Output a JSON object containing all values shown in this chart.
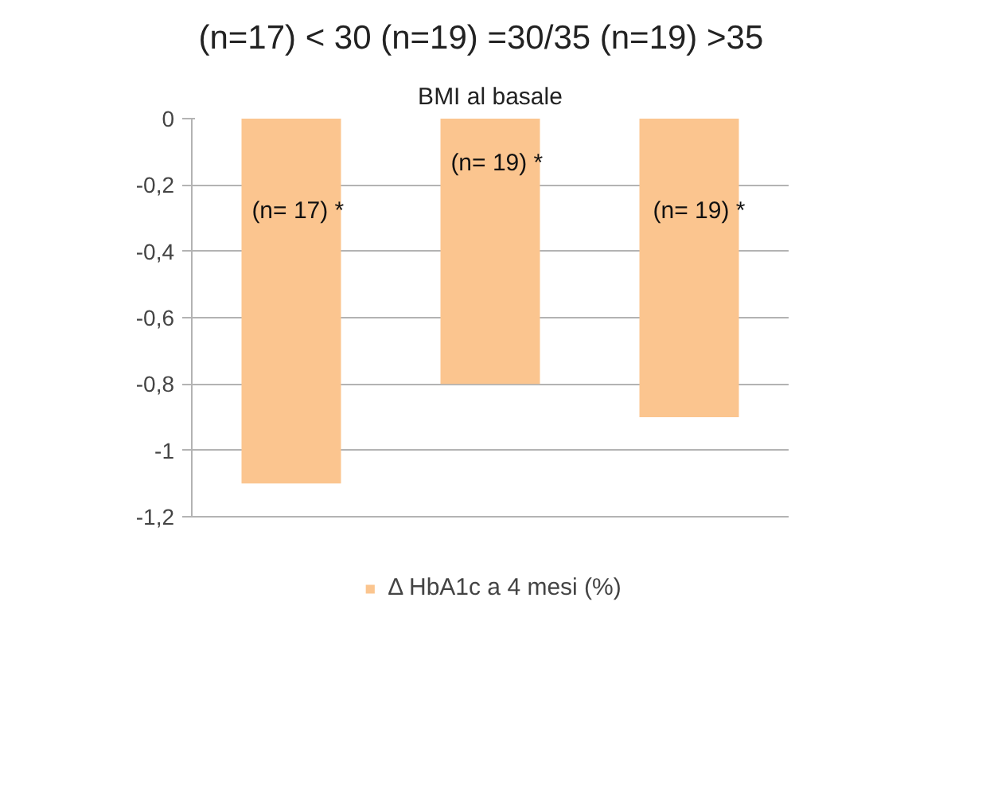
{
  "chart_data": {
    "type": "bar",
    "title": "(n=17) < 30   (n=19) =30/35 (n=19) >35",
    "subtitle": "BMI al basale",
    "categories": [
      null,
      null,
      null
    ],
    "series": [
      {
        "name": "Δ HbA1c a 4 mesi (%)",
        "color": "#fbc58f",
        "values": [
          -1.1,
          -0.8,
          -0.9
        ]
      }
    ],
    "ylim": [
      -1.2,
      0
    ],
    "yticks": [
      {
        "value": -1.2,
        "label": "-1,2"
      },
      {
        "value": -1,
        "label": "-1"
      },
      {
        "value": -0.8,
        "label": "-0,8"
      },
      {
        "value": -0.6,
        "label": "-0,6"
      },
      {
        "value": -0.4,
        "label": "-0,4"
      },
      {
        "value": -0.2,
        "label": "-0,2"
      },
      {
        "value": 0,
        "label": "0"
      }
    ],
    "annotations": [
      "(n= 17)  *",
      "(n= 19)  *",
      "(n= 19) *"
    ],
    "grid": "y",
    "legend": "bottom"
  }
}
